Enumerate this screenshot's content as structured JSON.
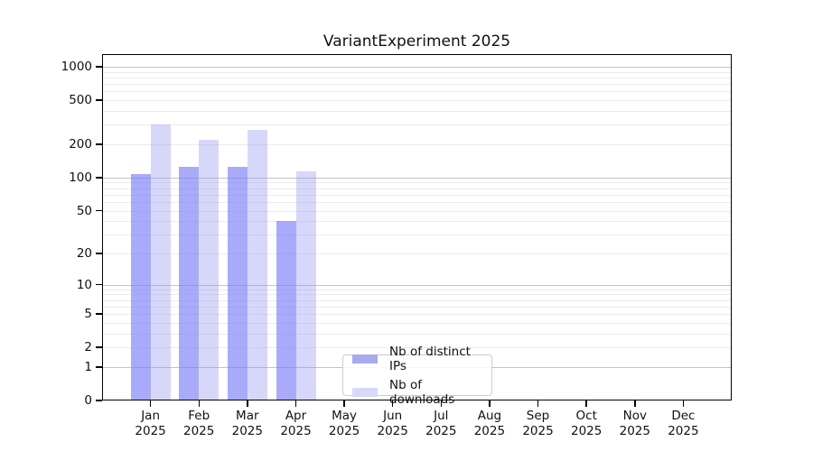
{
  "title": "VariantExperiment 2025",
  "chart_data": {
    "type": "bar",
    "title": "VariantExperiment 2025",
    "x_axis": {
      "months": [
        "Jan",
        "Feb",
        "Mar",
        "Apr",
        "May",
        "Jun",
        "Jul",
        "Aug",
        "Sep",
        "Oct",
        "Nov",
        "Dec"
      ],
      "year": "2025"
    },
    "y_axis": {
      "ticks": [
        0,
        1,
        2,
        5,
        10,
        20,
        50,
        100,
        200,
        500,
        1000
      ],
      "scale": "log10(1+x)",
      "max": 1300,
      "ylim": [
        0,
        1300
      ]
    },
    "series": [
      {
        "name": "Nb of distinct IPs",
        "values": [
          107,
          125,
          125,
          40,
          0,
          0,
          0,
          0,
          0,
          0,
          0,
          0
        ],
        "bar_color": "rgba(124,124,247,0.65)",
        "legend_color": "#a9a9f0"
      },
      {
        "name": "Nb of downloads",
        "values": [
          300,
          220,
          268,
          114,
          0,
          0,
          0,
          0,
          0,
          0,
          0,
          0
        ],
        "bar_color": "rgba(144,144,240,0.36)",
        "legend_color": "#d8d8f8"
      }
    ],
    "grid": {
      "show": true,
      "major_color": "#c4c4c4",
      "minor_color": "#ebebeb"
    },
    "legend_position": "lower-center-inside"
  },
  "colors": {
    "axis": "#000000",
    "text": "#111111",
    "background": "#ffffff"
  }
}
